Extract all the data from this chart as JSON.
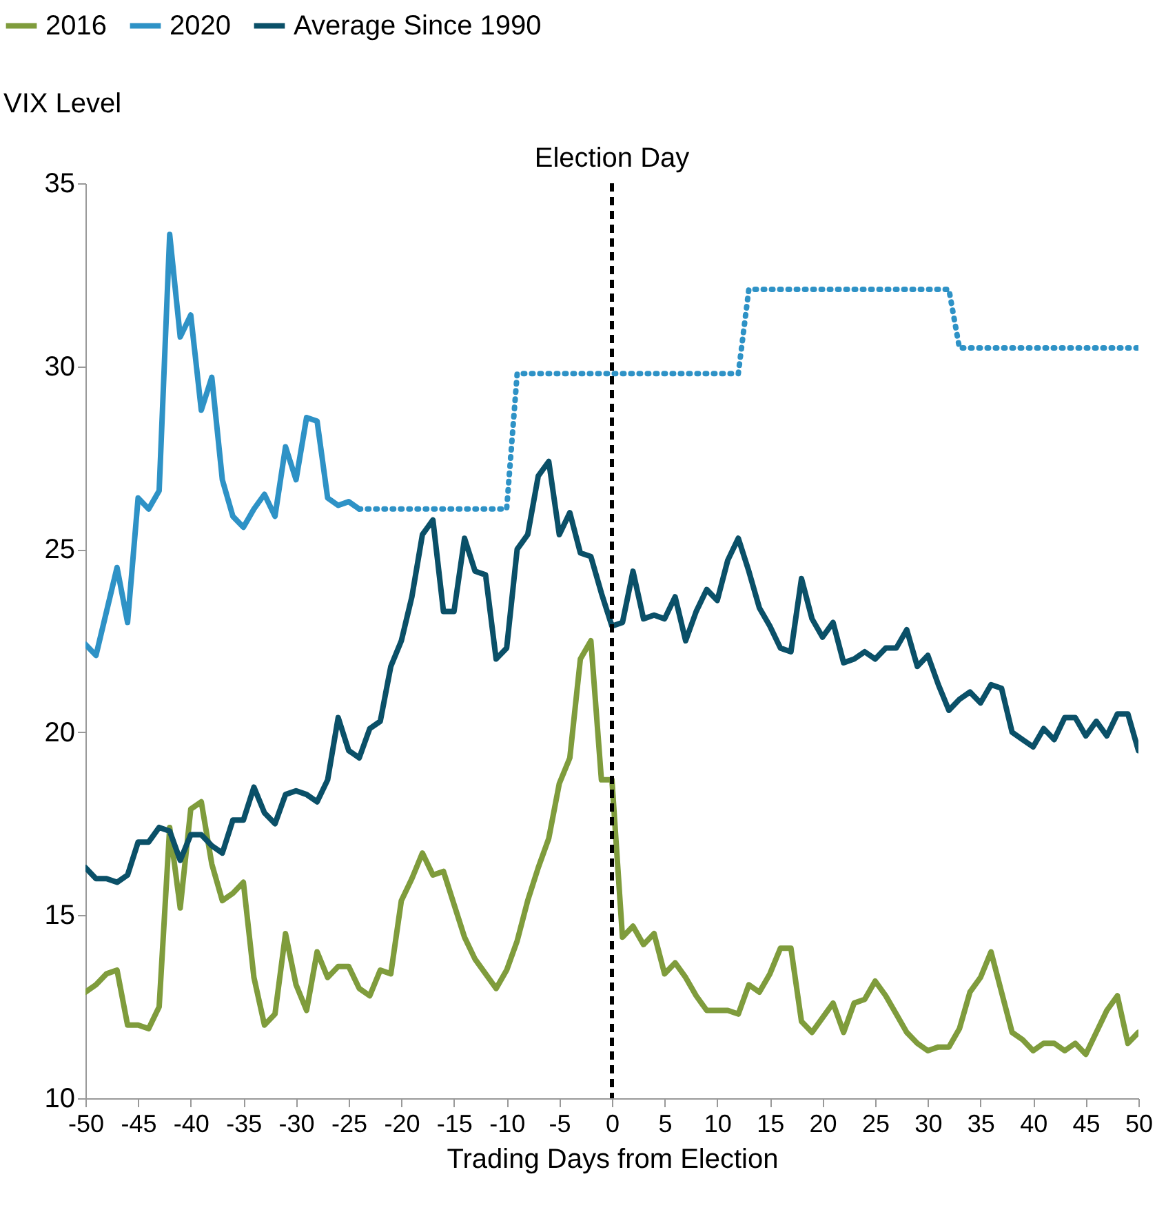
{
  "chart_data": {
    "type": "line",
    "ylabel": "VIX Level",
    "xlabel": "Trading Days from Election",
    "xlim": [
      -50,
      50
    ],
    "xticks": [
      -50,
      -45,
      -40,
      -35,
      -30,
      -25,
      -20,
      -15,
      -10,
      -5,
      0,
      5,
      10,
      15,
      20,
      25,
      30,
      35,
      40,
      45,
      50
    ],
    "ylim": [
      10,
      35
    ],
    "yticks": [
      10,
      15,
      20,
      25,
      30,
      35
    ],
    "grid": false,
    "legend": "top",
    "line_style": "solid",
    "ref_lines": [
      {
        "axis": "x",
        "value": 0,
        "label": "Election Day",
        "color": "#000000",
        "line_style": "dashed"
      }
    ],
    "series": [
      {
        "name": "2016",
        "color": "#7f9c3c",
        "x": [
          -50,
          -49,
          -48,
          -47,
          -46,
          -45,
          -44,
          -43,
          -42,
          -41,
          -40,
          -39,
          -38,
          -37,
          -36,
          -35,
          -34,
          -33,
          -32,
          -31,
          -30,
          -29,
          -28,
          -27,
          -26,
          -25,
          -24,
          -23,
          -22,
          -21,
          -20,
          -19,
          -18,
          -17,
          -16,
          -15,
          -14,
          -13,
          -12,
          -11,
          -10,
          -9,
          -8,
          -7,
          -6,
          -5,
          -4,
          -3,
          -2,
          -1,
          0,
          1,
          2,
          3,
          4,
          5,
          6,
          7,
          8,
          9,
          10,
          11,
          12,
          13,
          14,
          15,
          16,
          17,
          18,
          19,
          20,
          21,
          22,
          23,
          24,
          25,
          26,
          27,
          28,
          29,
          30,
          31,
          32,
          33,
          34,
          35,
          36,
          37,
          38,
          39,
          40,
          41,
          42,
          43,
          44,
          45,
          46,
          47,
          48,
          49,
          50
        ],
        "values": [
          12.9,
          13.1,
          13.4,
          13.5,
          12.0,
          12.0,
          11.9,
          12.5,
          17.4,
          15.2,
          17.9,
          18.1,
          16.4,
          15.4,
          15.6,
          15.9,
          13.3,
          12.0,
          12.3,
          14.5,
          13.1,
          12.4,
          14.0,
          13.3,
          13.6,
          13.6,
          13.0,
          12.8,
          13.5,
          13.4,
          15.4,
          16.0,
          16.7,
          16.1,
          16.2,
          15.3,
          14.4,
          13.8,
          13.4,
          13.0,
          13.5,
          14.3,
          15.4,
          16.3,
          17.1,
          18.6,
          19.3,
          22.0,
          22.5,
          18.7,
          18.7,
          14.4,
          14.7,
          14.2,
          14.5,
          13.4,
          13.7,
          13.3,
          12.8,
          12.4,
          12.4,
          12.4,
          12.3,
          13.1,
          12.9,
          13.4,
          14.1,
          14.1,
          12.1,
          11.8,
          12.2,
          12.6,
          11.8,
          12.6,
          12.7,
          13.2,
          12.8,
          12.3,
          11.8,
          11.5,
          11.3,
          11.4,
          11.4,
          11.9,
          12.9,
          13.3,
          14.0,
          12.9,
          11.8,
          11.6,
          11.3,
          11.5,
          11.5,
          11.3,
          11.5,
          11.2,
          11.8,
          12.4,
          12.8,
          11.5,
          11.8
        ]
      },
      {
        "name": "2020",
        "color": "#2e92c6",
        "x": [
          -50,
          -49,
          -48,
          -47,
          -46,
          -45,
          -44,
          -43,
          -42,
          -41,
          -40,
          -39,
          -38,
          -37,
          -36,
          -35,
          -34,
          -33,
          -32,
          -31,
          -30,
          -29,
          -28,
          -27,
          -26,
          -25,
          -24
        ],
        "values": [
          22.4,
          22.1,
          23.3,
          24.5,
          23.0,
          26.4,
          26.1,
          26.6,
          33.6,
          30.8,
          31.4,
          28.8,
          29.7,
          26.9,
          25.9,
          25.6,
          26.1,
          26.5,
          25.9,
          27.8,
          26.9,
          28.6,
          28.5,
          26.4,
          26.2,
          26.3,
          26.1
        ]
      },
      {
        "color": "#2e92c6",
        "line_style": "dotted",
        "x": [
          -24,
          -10,
          -9,
          12,
          13,
          32,
          33,
          50
        ],
        "values": [
          26.1,
          26.1,
          29.8,
          29.8,
          32.1,
          32.1,
          30.5,
          30.5
        ]
      },
      {
        "name": "Average Since 1990",
        "color": "#0a5068",
        "x": [
          -50,
          -49,
          -48,
          -47,
          -46,
          -45,
          -44,
          -43,
          -42,
          -41,
          -40,
          -39,
          -38,
          -37,
          -36,
          -35,
          -34,
          -33,
          -32,
          -31,
          -30,
          -29,
          -28,
          -27,
          -26,
          -25,
          -24,
          -23,
          -22,
          -21,
          -20,
          -19,
          -18,
          -17,
          -16,
          -15,
          -14,
          -13,
          -12,
          -11,
          -10,
          -9,
          -8,
          -7,
          -6,
          -5,
          -4,
          -3,
          -2,
          -1,
          0,
          1,
          2,
          3,
          4,
          5,
          6,
          7,
          8,
          9,
          10,
          11,
          12,
          13,
          14,
          15,
          16,
          17,
          18,
          19,
          20,
          21,
          22,
          23,
          24,
          25,
          26,
          27,
          28,
          29,
          30,
          31,
          32,
          33,
          34,
          35,
          36,
          37,
          38,
          39,
          40,
          41,
          42,
          43,
          44,
          45,
          46,
          47,
          48,
          49,
          50
        ],
        "values": [
          16.3,
          16.0,
          16.0,
          15.9,
          16.1,
          17.0,
          17.0,
          17.4,
          17.3,
          16.5,
          17.2,
          17.2,
          16.9,
          16.7,
          17.6,
          17.6,
          18.5,
          17.8,
          17.5,
          18.3,
          18.4,
          18.3,
          18.1,
          18.7,
          20.4,
          19.5,
          19.3,
          20.1,
          20.3,
          21.8,
          22.5,
          23.7,
          25.4,
          25.8,
          23.3,
          23.3,
          25.3,
          24.4,
          24.3,
          22.0,
          22.3,
          25.0,
          25.4,
          27.0,
          27.4,
          25.4,
          26.0,
          24.9,
          24.8,
          23.8,
          22.9,
          23.0,
          24.4,
          23.1,
          23.2,
          23.1,
          23.7,
          22.5,
          23.3,
          23.9,
          23.6,
          24.7,
          25.3,
          24.4,
          23.4,
          22.9,
          22.3,
          22.2,
          24.2,
          23.1,
          22.6,
          23.0,
          21.9,
          22.0,
          22.2,
          22.0,
          22.3,
          22.3,
          22.8,
          21.8,
          22.1,
          21.3,
          20.6,
          20.9,
          21.1,
          20.8,
          21.3,
          21.2,
          20.0,
          19.8,
          19.6,
          20.1,
          19.8,
          20.4,
          20.4,
          19.9,
          20.3,
          19.9,
          20.5,
          20.5,
          19.5
        ]
      }
    ]
  }
}
